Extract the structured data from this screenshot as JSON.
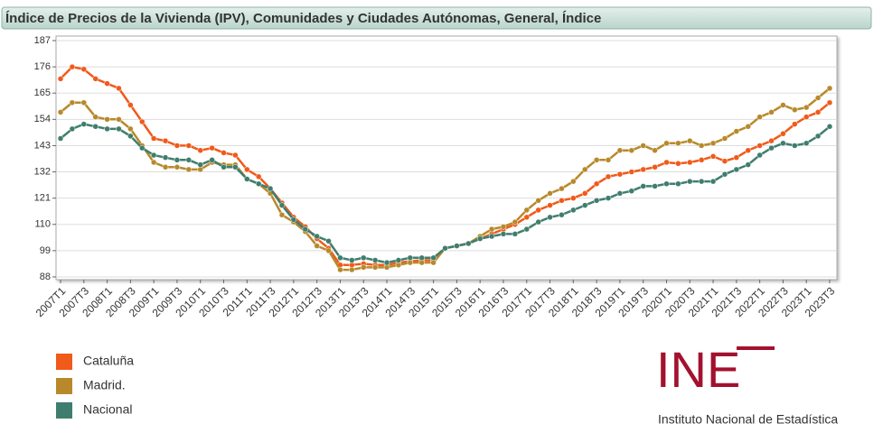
{
  "chart_data": {
    "type": "line",
    "title": "Índice de Precios de la Vivienda (IPV), Comunidades y Ciudades Autónomas, General, Índice",
    "categories": [
      "2007T1",
      null,
      "2007T3",
      null,
      "2008T1",
      null,
      "2008T3",
      null,
      "2009T1",
      null,
      "2009T3",
      null,
      "2010T1",
      null,
      "2010T3",
      null,
      "2011T1",
      null,
      "2011T3",
      null,
      "2012T1",
      null,
      "2012T3",
      null,
      "2013T1",
      null,
      "2013T3",
      null,
      "2014T1",
      null,
      "2014T3",
      null,
      "2015T1",
      null,
      "2015T3",
      null,
      "2016T1",
      null,
      "2016T3",
      null,
      "2017T1",
      null,
      "2017T3",
      null,
      "2018T1",
      null,
      "2018T3",
      null,
      "2019T1",
      null,
      "2019T3",
      null,
      "2020T1",
      null,
      "2020T3",
      null,
      "2021T1",
      null,
      "2021T3",
      null,
      "2022T1",
      null,
      "2022T3",
      null,
      "2023T1",
      null,
      "2023T3"
    ],
    "series": [
      {
        "name": "Cataluña",
        "color": "#f05a1a",
        "values": [
          171,
          176,
          175,
          171,
          169,
          167,
          160,
          153,
          146,
          145,
          143,
          143,
          141,
          142,
          140,
          139,
          133,
          130,
          125,
          119,
          113,
          109,
          104,
          100,
          93,
          93,
          93.5,
          93,
          93,
          94,
          94.5,
          95,
          95,
          100,
          101,
          102,
          104,
          106,
          108,
          110,
          113,
          116,
          118,
          120,
          121,
          123,
          127,
          130,
          131,
          132,
          133,
          134,
          136,
          135.5,
          136,
          137,
          138.5,
          136.5,
          138,
          141,
          143,
          145,
          148,
          152,
          155,
          157,
          161
        ]
      },
      {
        "name": "Madrid.",
        "color": "#b8892b",
        "values": [
          157,
          161,
          161,
          155,
          154,
          154,
          150,
          143,
          136,
          134,
          134,
          133,
          133,
          136,
          135,
          135,
          129,
          127,
          123,
          114,
          111,
          107,
          101,
          99,
          91,
          91,
          92,
          92,
          92,
          93,
          94,
          94,
          94,
          100,
          101,
          102,
          105,
          108,
          109,
          111,
          116,
          120,
          123,
          125,
          128,
          133,
          137,
          137,
          141,
          141,
          143,
          141,
          144,
          144,
          145,
          143,
          144,
          146,
          149,
          151,
          155,
          157,
          160,
          158,
          159,
          163,
          167
        ]
      },
      {
        "name": "Nacional",
        "color": "#3f7e6e",
        "values": [
          146,
          150,
          152,
          151,
          150,
          150,
          147,
          142,
          139,
          138,
          137,
          137,
          135,
          137,
          134,
          134,
          129,
          127,
          125,
          118,
          112,
          108,
          105,
          103,
          96,
          95,
          96,
          95,
          94,
          95,
          96,
          96,
          96,
          100,
          101,
          102,
          104,
          105,
          106,
          106,
          108,
          111,
          113,
          114,
          116,
          118,
          120,
          121,
          123,
          124,
          126,
          126,
          127,
          127,
          128,
          128,
          128,
          131,
          133,
          135,
          139,
          142,
          144,
          143,
          144,
          147,
          151
        ]
      }
    ],
    "ylim": [
      88,
      187
    ],
    "yticks": [
      88,
      99,
      110,
      121,
      132,
      143,
      154,
      165,
      176,
      187
    ],
    "grid": true
  },
  "logo": {
    "mark": "INE",
    "name": "Instituto Nacional de Estadística"
  }
}
